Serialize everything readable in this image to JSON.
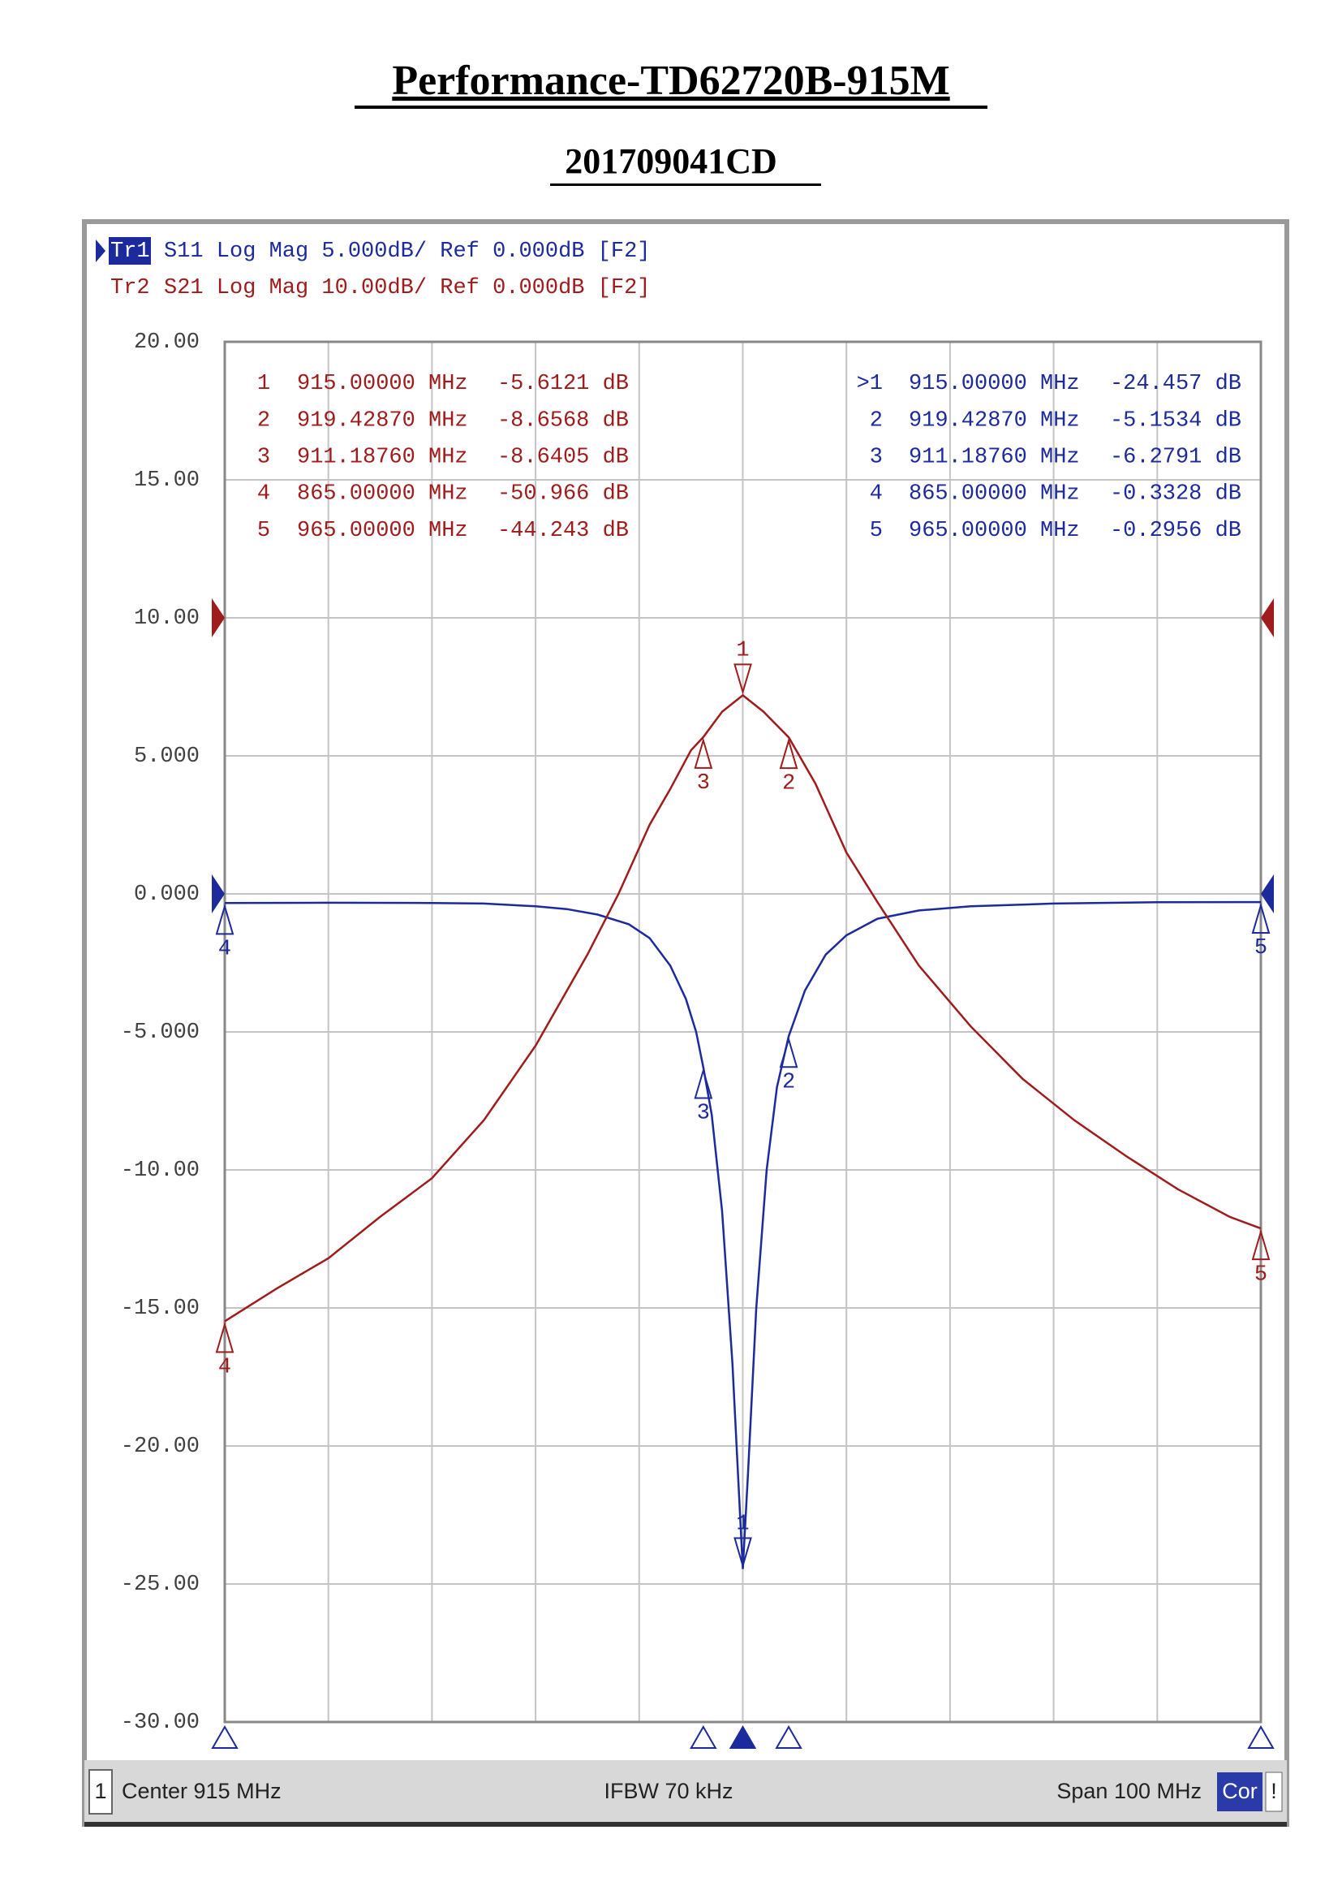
{
  "chart_data": {
    "type": "line",
    "title": "Performance-TD62720B-915M",
    "subtitle": "201709041CD",
    "xlim": [
      865,
      965
    ],
    "xticks": [
      865,
      875,
      885,
      895,
      905,
      915,
      925,
      935,
      945,
      955,
      965
    ],
    "ylim": [
      -30,
      20
    ],
    "yticks": [
      {
        "value": 20,
        "label": "20.00"
      },
      {
        "value": 15,
        "label": "15.00"
      },
      {
        "value": 10,
        "label": "10.00"
      },
      {
        "value": 5,
        "label": "5.000"
      },
      {
        "value": 0,
        "label": "0.000"
      },
      {
        "value": -5,
        "label": "-5.000"
      },
      {
        "value": -10,
        "label": "-10.00"
      },
      {
        "value": -15,
        "label": "-15.00"
      },
      {
        "value": -20,
        "label": "-20.00"
      },
      {
        "value": -25,
        "label": "-25.00"
      },
      {
        "value": -30,
        "label": "-30.00"
      }
    ],
    "y2lim": [
      -80,
      20
    ],
    "grid": true,
    "series": [
      {
        "name": "Tr1",
        "label": "S11 Log Mag 5.000dB/ Ref 0.000dB [F2]",
        "color": "#1c2a9c",
        "ref": 0,
        "x": [
          865,
          875,
          885,
          890,
          895,
          898,
          901,
          904,
          906,
          908,
          909.5,
          910.5,
          911.1876,
          912,
          913,
          914,
          914.6,
          915,
          915.5,
          916.3,
          917.3,
          918.3,
          919.4287,
          921,
          923,
          925,
          928,
          932,
          937,
          945,
          955,
          965
        ],
        "values": [
          -0.3328,
          -0.32,
          -0.33,
          -0.35,
          -0.45,
          -0.55,
          -0.75,
          -1.1,
          -1.6,
          -2.6,
          -3.8,
          -5,
          -6.2791,
          -8,
          -11.5,
          -17,
          -21.5,
          -24.457,
          -21,
          -15,
          -10,
          -7,
          -5.1534,
          -3.5,
          -2.2,
          -1.5,
          -0.9,
          -0.6,
          -0.45,
          -0.35,
          -0.3,
          -0.2956
        ],
        "markers": [
          {
            "id": "1",
            "table_id": ">1",
            "x": 915.0,
            "y": -24.457,
            "x_label": "915.00000 MHz",
            "y_label": "-24.457 dB"
          },
          {
            "id": "2",
            "table_id": "2",
            "x": 919.4287,
            "y": -5.1534,
            "x_label": "919.42870 MHz",
            "y_label": "-5.1534 dB"
          },
          {
            "id": "3",
            "table_id": "3",
            "x": 911.1876,
            "y": -6.2791,
            "x_label": "911.18760 MHz",
            "y_label": "-6.2791 dB"
          },
          {
            "id": "4",
            "table_id": "4",
            "x": 865.0,
            "y": -0.3328,
            "x_label": "865.00000 MHz",
            "y_label": "-0.3328 dB"
          },
          {
            "id": "5",
            "table_id": "5",
            "x": 965.0,
            "y": -0.2956,
            "x_label": "965.00000 MHz",
            "y_label": "-0.2956 dB"
          }
        ]
      },
      {
        "name": "Tr2",
        "label": "S21 Log Mag 10.00dB/ Ref 0.000dB [F2]",
        "color": "#a01c1c",
        "axis": "y2",
        "ref": 0,
        "x": [
          865,
          870,
          875,
          880,
          885,
          890,
          895,
          900,
          903,
          906,
          908,
          910,
          911.1876,
          913,
          915,
          917,
          919.4287,
          922,
          925,
          928,
          932,
          937,
          942,
          947,
          952,
          957,
          962,
          965
        ],
        "values": [
          -50.966,
          -48.6,
          -46.4,
          -43.4,
          -40.6,
          -36.4,
          -31,
          -24.4,
          -20,
          -15,
          -12.4,
          -9.6,
          -8.6405,
          -6.8,
          -5.6121,
          -6.8,
          -8.6568,
          -12,
          -17,
          -20.6,
          -25.2,
          -29.6,
          -33.4,
          -36.4,
          -39,
          -41.4,
          -43.4,
          -44.243
        ],
        "markers": [
          {
            "id": "1",
            "table_id": "1",
            "x": 915.0,
            "y": -5.6121,
            "x_label": "915.00000 MHz",
            "y_label": "-5.6121 dB"
          },
          {
            "id": "2",
            "table_id": "2",
            "x": 919.4287,
            "y": -8.6568,
            "x_label": "919.42870 MHz",
            "y_label": "-8.6568 dB"
          },
          {
            "id": "3",
            "table_id": "3",
            "x": 911.1876,
            "y": -8.6405,
            "x_label": "911.18760 MHz",
            "y_label": "-8.6405 dB"
          },
          {
            "id": "4",
            "table_id": "4",
            "x": 865.0,
            "y": -50.966,
            "x_label": "865.00000 MHz",
            "y_label": "-50.966 dB"
          },
          {
            "id": "5",
            "table_id": "5",
            "x": 965.0,
            "y": -44.243,
            "x_label": "965.00000 MHz",
            "y_label": "-44.243 dB"
          }
        ]
      }
    ],
    "status": {
      "channel": "1",
      "center": "Center 915 MHz",
      "ifbw": "IFBW 70 kHz",
      "span": "Span 100 MHz",
      "cor": "Cor",
      "flag": "!"
    }
  }
}
